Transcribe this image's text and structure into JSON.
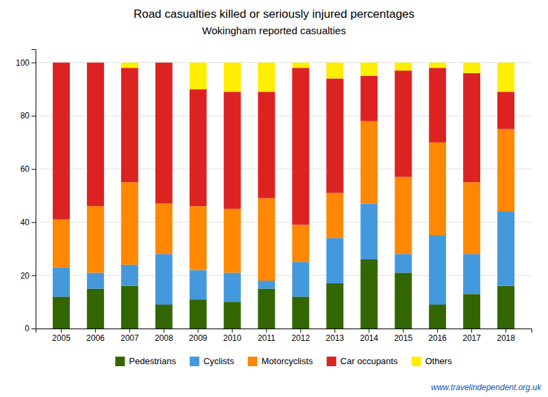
{
  "chart_data": {
    "type": "bar",
    "stacked": true,
    "title": "Road casualties killed or seriously injured percentages",
    "subtitle": "Wokingham reported casualties",
    "annotation": "www.travelindependent.org.uk",
    "categories": [
      "2005",
      "2006",
      "2007",
      "2008",
      "2009",
      "2010",
      "2011",
      "2012",
      "2013",
      "2014",
      "2015",
      "2016",
      "2017",
      "2018"
    ],
    "series": [
      {
        "name": "Pedestrians",
        "color": "#336600",
        "values": [
          12,
          15,
          16,
          9,
          11,
          10,
          15,
          12,
          17,
          26,
          21,
          9,
          13,
          16
        ]
      },
      {
        "name": "Cyclists",
        "color": "#4499dd",
        "values": [
          11,
          6,
          8,
          19,
          11,
          11,
          3,
          13,
          17,
          21,
          7,
          26,
          15,
          28
        ]
      },
      {
        "name": "Motorcyclists",
        "color": "#ff8800",
        "values": [
          18,
          25,
          31,
          19,
          24,
          24,
          31,
          14,
          17,
          31,
          29,
          35,
          27,
          31
        ]
      },
      {
        "name": "Car occupants",
        "color": "#dd2222",
        "values": [
          59,
          54,
          43,
          53,
          44,
          44,
          40,
          59,
          43,
          17,
          40,
          28,
          41,
          14
        ]
      },
      {
        "name": "Others",
        "color": "#ffee00",
        "values": [
          0,
          0,
          2,
          0,
          10,
          11,
          11,
          2,
          6,
          5,
          3,
          2,
          4,
          11
        ]
      }
    ],
    "ylim": [
      0,
      105
    ],
    "yticks": [
      0,
      20,
      40,
      60,
      80,
      100
    ],
    "grid": true,
    "legend": "bottom"
  }
}
